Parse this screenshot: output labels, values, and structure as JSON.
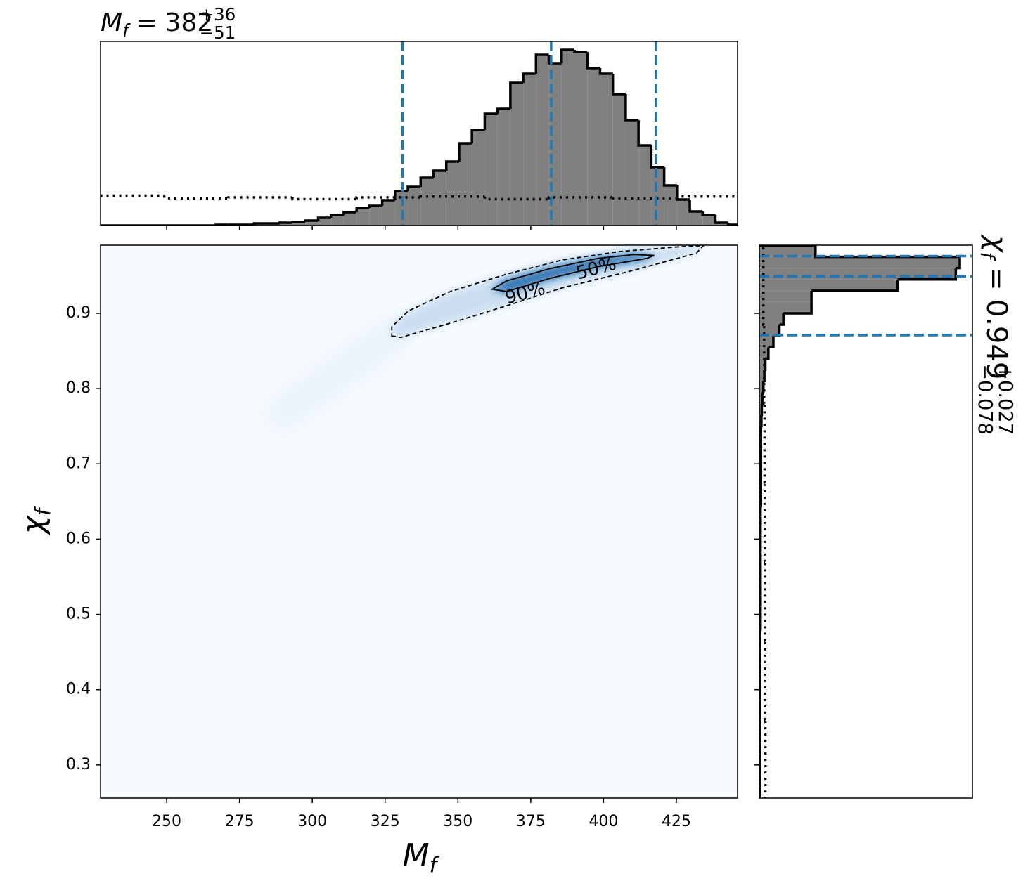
{
  "chart_data": {
    "type": "corner",
    "title": {
      "symbol": "M",
      "subscript": "f",
      "equals": "=",
      "value": "382",
      "upper": "+36",
      "lower": "−51"
    },
    "side_title": {
      "symbol": "χ",
      "subscript": "f",
      "equals": "=",
      "value": "0.949",
      "upper": "+0.027",
      "lower": "−0.078"
    },
    "xlabel": {
      "symbol": "M",
      "subscript": "f"
    },
    "ylabel": {
      "symbol": "χ",
      "subscript": "f"
    },
    "xlim": [
      227.3,
      446
    ],
    "xticks": [
      250,
      275,
      300,
      325,
      350,
      375,
      400,
      425
    ],
    "ylim": [
      0.256,
      0.9905
    ],
    "yticks": [
      0.3,
      0.4,
      0.5,
      0.6,
      0.7,
      0.8,
      0.9
    ],
    "heatmap": {
      "background": "#f7fbff",
      "colors": [
        "#c6dbef",
        "#6baed6",
        "#08519c"
      ]
    },
    "contours": [
      {
        "label": "50%",
        "style": "solid",
        "x": [
          361.8,
          366.7,
          381.2,
          398.1,
          414.9,
          417.4,
          410.2,
          398.1,
          381.2,
          366.7
        ],
        "y": [
          0.932,
          0.929,
          0.946,
          0.962,
          0.973,
          0.977,
          0.978,
          0.973,
          0.959,
          0.943
        ]
      },
      {
        "label": "90%",
        "style": "dashed",
        "x": [
          327.3,
          330.4,
          347.4,
          366.7,
          386.0,
          410.2,
          431.9,
          434.3,
          424.6,
          405.3,
          386.0,
          366.7,
          347.4,
          332.9,
          327.3
        ],
        "y": [
          0.87,
          0.868,
          0.887,
          0.91,
          0.934,
          0.957,
          0.98,
          0.99,
          0.988,
          0.982,
          0.971,
          0.952,
          0.929,
          0.903,
          0.882
        ]
      }
    ],
    "top_histogram": {
      "color": "#808080",
      "ylim": [
        0,
        1.048
      ],
      "bins": [
        227.2,
        231.6,
        236,
        240.4,
        244.8,
        249.2,
        253.6,
        258,
        262.4,
        266.8,
        271.2,
        275.6,
        280,
        284.4,
        288.8,
        293.2,
        297.6,
        302,
        306.4,
        310.8,
        315.2,
        319.6,
        324,
        328.4,
        332.8,
        337.2,
        341.6,
        346,
        350.4,
        354.8,
        359.2,
        363.6,
        368,
        372.4,
        376.8,
        381.2,
        385.6,
        390,
        394.4,
        398.8,
        403.2,
        407.6,
        412,
        416.4,
        420.8,
        425.2,
        429.6,
        434,
        438.4,
        442.8,
        447.2
      ],
      "values": [
        0,
        0,
        0,
        0,
        0,
        0,
        0,
        0,
        0,
        0.004,
        0.004,
        0.004,
        0.012,
        0.012,
        0.016,
        0.02,
        0.028,
        0.044,
        0.06,
        0.076,
        0.1,
        0.112,
        0.144,
        0.196,
        0.22,
        0.272,
        0.312,
        0.364,
        0.468,
        0.544,
        0.636,
        0.664,
        0.812,
        0.864,
        0.972,
        0.924,
        1.0,
        0.988,
        0.896,
        0.864,
        0.748,
        0.6,
        0.456,
        0.332,
        0.228,
        0.148,
        0.08,
        0.06,
        0.016,
        0.004
      ],
      "quantiles": [
        331,
        382,
        418
      ],
      "quantile_color": "#1f77b4",
      "prior": {
        "bins": [
          227.2,
          249.2,
          271.2,
          293.2,
          315.2,
          337.2,
          359.2,
          381.2,
          403.2,
          425.2,
          447.2
        ],
        "values": [
          0.17,
          0.155,
          0.16,
          0.15,
          0.16,
          0.165,
          0.15,
          0.16,
          0.155,
          0.165
        ]
      }
    },
    "side_histogram": {
      "color": "#808080",
      "xlim": [
        0,
        1.063
      ],
      "bins": [
        0.255,
        0.27,
        0.285,
        0.3,
        0.315,
        0.33,
        0.345,
        0.36,
        0.375,
        0.39,
        0.405,
        0.42,
        0.435,
        0.45,
        0.465,
        0.48,
        0.495,
        0.51,
        0.525,
        0.54,
        0.555,
        0.57,
        0.585,
        0.6,
        0.615,
        0.63,
        0.645,
        0.66,
        0.675,
        0.69,
        0.705,
        0.72,
        0.735,
        0.75,
        0.765,
        0.78,
        0.795,
        0.81,
        0.825,
        0.84,
        0.855,
        0.87,
        0.885,
        0.9,
        0.915,
        0.93,
        0.945,
        0.96,
        0.975,
        0.99
      ],
      "values": [
        0.004,
        0.004,
        0.004,
        0.004,
        0.004,
        0.004,
        0.004,
        0.004,
        0.004,
        0.004,
        0.004,
        0.004,
        0.004,
        0.004,
        0.004,
        0.006,
        0.006,
        0.006,
        0.006,
        0.006,
        0.006,
        0.006,
        0.006,
        0.006,
        0.006,
        0.006,
        0.008,
        0.008,
        0.008,
        0.008,
        0.008,
        0.008,
        0.008,
        0.01,
        0.012,
        0.015,
        0.02,
        0.025,
        0.03,
        0.045,
        0.07,
        0.1,
        0.12,
        0.26,
        0.26,
        0.69,
        0.98,
        1.0,
        0.28
      ],
      "quantiles": [
        0.871,
        0.949,
        0.976
      ],
      "quantile_color": "#1f77b4",
      "prior": {
        "bins": [
          0.255,
          0.36,
          0.465,
          0.57,
          0.675,
          0.78,
          0.885,
          0.99
        ],
        "values": [
          0.03,
          0.029,
          0.028,
          0.027,
          0.026,
          0.024,
          0.02
        ]
      }
    }
  }
}
